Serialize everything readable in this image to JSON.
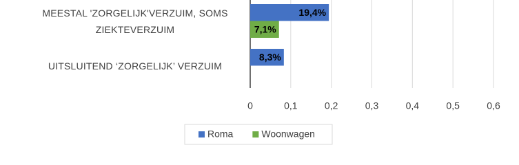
{
  "chart_data": {
    "type": "hbar",
    "categories": [
      "MEESTAL 'ZORGELIJK'VERZUIM, SOMS ZIEKTEVERZUIM",
      "UITSLUITEND ‘ZORGELIJK’ VERZUIM"
    ],
    "series": [
      {
        "name": "Roma",
        "color": "#4472c4",
        "values": [
          0.194,
          0.083
        ],
        "value_labels": [
          "19,4%",
          "8,3%"
        ]
      },
      {
        "name": "Woonwagen",
        "color": "#70ad47",
        "values": [
          0.071,
          null
        ],
        "value_labels": [
          "7,1%",
          null
        ]
      }
    ],
    "xlim": [
      0,
      0.6
    ],
    "xticks": [
      0,
      {
        "value": 0.1,
        "label": "0,1"
      },
      {
        "value": 0.2,
        "label": "0,2"
      },
      {
        "value": 0.3,
        "label": "0,3"
      },
      {
        "value": 0.4,
        "label": "0,4"
      },
      {
        "value": 0.5,
        "label": "0,5"
      },
      {
        "value": 0.6,
        "label": "0,6"
      }
    ],
    "grid": true,
    "legend": "bottom"
  }
}
